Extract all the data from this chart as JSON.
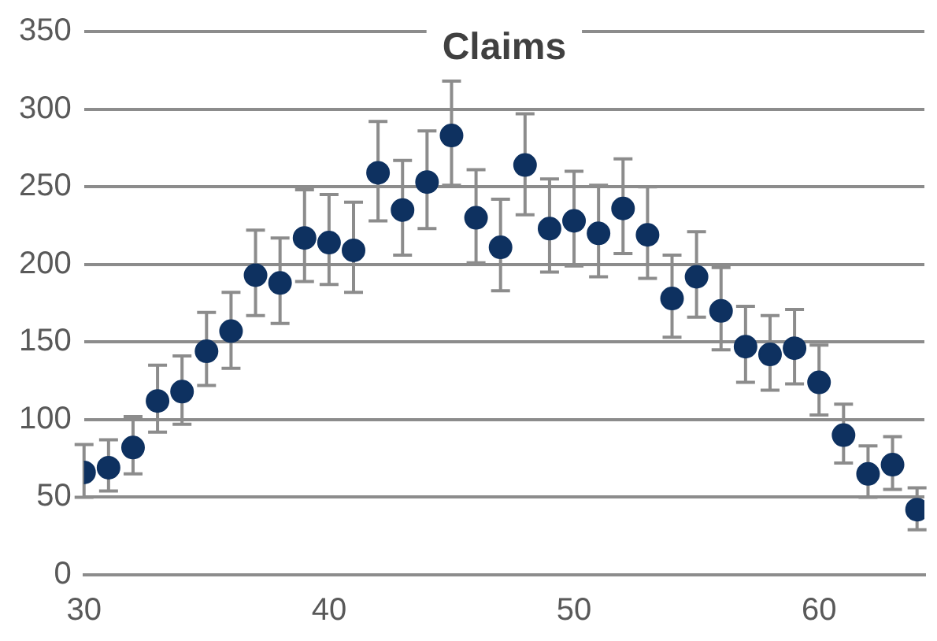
{
  "chart_data": {
    "type": "scatter",
    "title": "Claims",
    "x": [
      30,
      31,
      32,
      33,
      34,
      35,
      36,
      37,
      38,
      39,
      40,
      41,
      42,
      43,
      44,
      45,
      46,
      47,
      48,
      49,
      50,
      51,
      52,
      53,
      54,
      55,
      56,
      57,
      58,
      59,
      60,
      61,
      62,
      63,
      64
    ],
    "series": [
      {
        "color": "#0e3160",
        "values": [
          66,
          69,
          82,
          112,
          118,
          144,
          157,
          193,
          188,
          217,
          214,
          209,
          259,
          235,
          253,
          283,
          230,
          211,
          264,
          223,
          228,
          220,
          236,
          219,
          178,
          192,
          170,
          147,
          142,
          146,
          124,
          90,
          65,
          71,
          42
        ],
        "errors": [
          [
            50,
            84
          ],
          [
            54,
            87
          ],
          [
            65,
            102
          ],
          [
            92,
            135
          ],
          [
            97,
            141
          ],
          [
            122,
            169
          ],
          [
            133,
            182
          ],
          [
            167,
            222
          ],
          [
            162,
            217
          ],
          [
            189,
            248
          ],
          [
            187,
            245
          ],
          [
            182,
            240
          ],
          [
            228,
            292
          ],
          [
            206,
            267
          ],
          [
            223,
            286
          ],
          [
            251,
            318
          ],
          [
            201,
            261
          ],
          [
            183,
            242
          ],
          [
            232,
            297
          ],
          [
            195,
            255
          ],
          [
            199,
            260
          ],
          [
            192,
            251
          ],
          [
            207,
            268
          ],
          [
            191,
            250
          ],
          [
            153,
            206
          ],
          [
            166,
            221
          ],
          [
            145,
            198
          ],
          [
            124,
            173
          ],
          [
            119,
            167
          ],
          [
            123,
            171
          ],
          [
            103,
            148
          ],
          [
            72,
            110
          ],
          [
            50,
            83
          ],
          [
            55,
            89
          ],
          [
            29,
            56
          ]
        ]
      }
    ],
    "xlim": [
      30,
      64.3
    ],
    "xticks": [
      30,
      40,
      50,
      60
    ],
    "ylim": [
      0,
      350
    ],
    "yticks": [
      0,
      50,
      100,
      150,
      200,
      250,
      300,
      350
    ],
    "grid": "y",
    "legend": false,
    "marker": "circle"
  }
}
